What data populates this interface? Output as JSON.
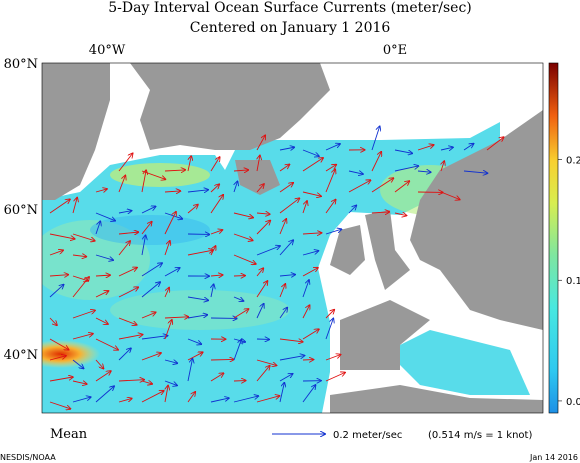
{
  "header": {
    "title": "5-Day Interval Ocean Surface Currents (meter/sec)",
    "subtitle": "Centered on January 1 2016"
  },
  "map": {
    "longitude_labels": [
      "40°W",
      "0°E"
    ],
    "latitude_labels": [
      "80°N",
      "60°N",
      "40°N"
    ]
  },
  "colorbar": {
    "range": [
      -0.01,
      0.28
    ],
    "ticks": [
      0.2,
      0.1,
      {
        "value": 0,
        "label": "0.0"
      }
    ]
  },
  "legend": {
    "mean_label": "Mean",
    "scale_text": "0.2 meter/sec",
    "note": "(0.514 m/s = 1 knot)"
  },
  "footer": {
    "source": "NESDIS/NOAA",
    "date": "Jan 14 2016"
  }
}
